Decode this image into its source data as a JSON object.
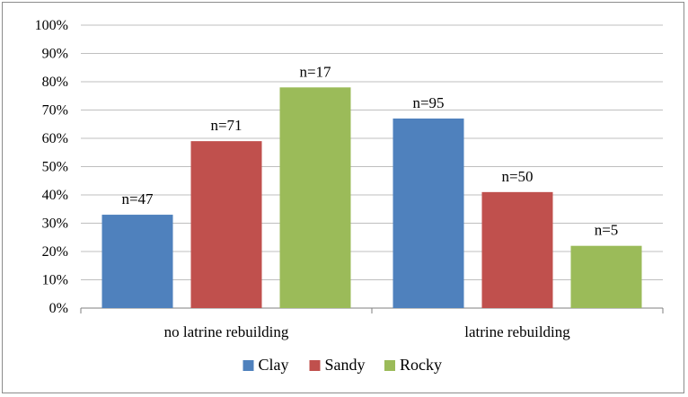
{
  "chart_data": {
    "type": "bar",
    "categories": [
      "no latrine rebuilding",
      "latrine rebuilding"
    ],
    "series": [
      {
        "name": "Clay",
        "color": "#4f81bd",
        "values": [
          33,
          67
        ],
        "labels": [
          "n=47",
          "n=95"
        ]
      },
      {
        "name": "Sandy",
        "color": "#c0504d",
        "values": [
          59,
          41
        ],
        "labels": [
          "n=71",
          "n=50"
        ]
      },
      {
        "name": "Rocky",
        "color": "#9bbb59",
        "values": [
          78,
          22
        ],
        "labels": [
          "n=17",
          "n=5"
        ]
      }
    ],
    "y_ticks": [
      "0%",
      "10%",
      "20%",
      "30%",
      "40%",
      "50%",
      "60%",
      "70%",
      "80%",
      "90%",
      "100%"
    ],
    "ylim": [
      0,
      100
    ],
    "grid": true,
    "legend_position": "bottom",
    "title": "",
    "xlabel": "",
    "ylabel": ""
  }
}
